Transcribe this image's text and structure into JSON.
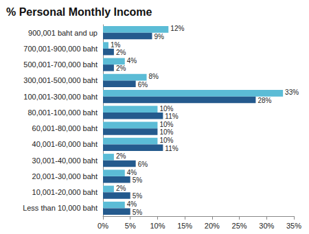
{
  "chart_data": {
    "type": "bar",
    "title": "% Personal Monthly Income",
    "orientation": "horizontal",
    "categories": [
      "900,001 baht and up",
      "700,001-900,000 baht",
      "500,001-700,000 baht",
      "300,001-500,000 baht",
      "100,001-300,000 baht",
      "80,001-100,000 baht",
      "60,001-80,000 baht",
      "40,001-60,000 baht",
      "30,001-40,000 baht",
      "20,001-30,000 baht",
      "10,001-20,000 baht",
      "Less than 10,000 baht"
    ],
    "series": [
      {
        "color": "#5bbcd6",
        "values": [
          12,
          1,
          4,
          8,
          33,
          10,
          10,
          10,
          2,
          4,
          2,
          4
        ],
        "value_labels": [
          "12%",
          "1%",
          "4%",
          "8%",
          "33%",
          "10%",
          "10%",
          "10%",
          "2%",
          "4%",
          "2%",
          "4%"
        ]
      },
      {
        "color": "#245a8d",
        "values": [
          9,
          2,
          2,
          6,
          28,
          11,
          10,
          11,
          6,
          5,
          5,
          5
        ],
        "value_labels": [
          "9%",
          "2%",
          "2%",
          "6%",
          "28%",
          "11%",
          "10%",
          "11%",
          "6%",
          "5%",
          "5%",
          "5%"
        ]
      }
    ],
    "xlim": [
      0,
      35
    ],
    "xticks": [
      {
        "value": 0,
        "label": "0%"
      },
      {
        "value": 5,
        "label": "5%"
      },
      {
        "value": 10,
        "label": "10%"
      },
      {
        "value": 15,
        "label": "15%"
      },
      {
        "value": 20,
        "label": "20%"
      },
      {
        "value": 25,
        "label": "25%"
      },
      {
        "value": 30,
        "label": "30%"
      },
      {
        "value": 35,
        "label": "35%"
      }
    ],
    "grid": false,
    "data_labels": true
  }
}
